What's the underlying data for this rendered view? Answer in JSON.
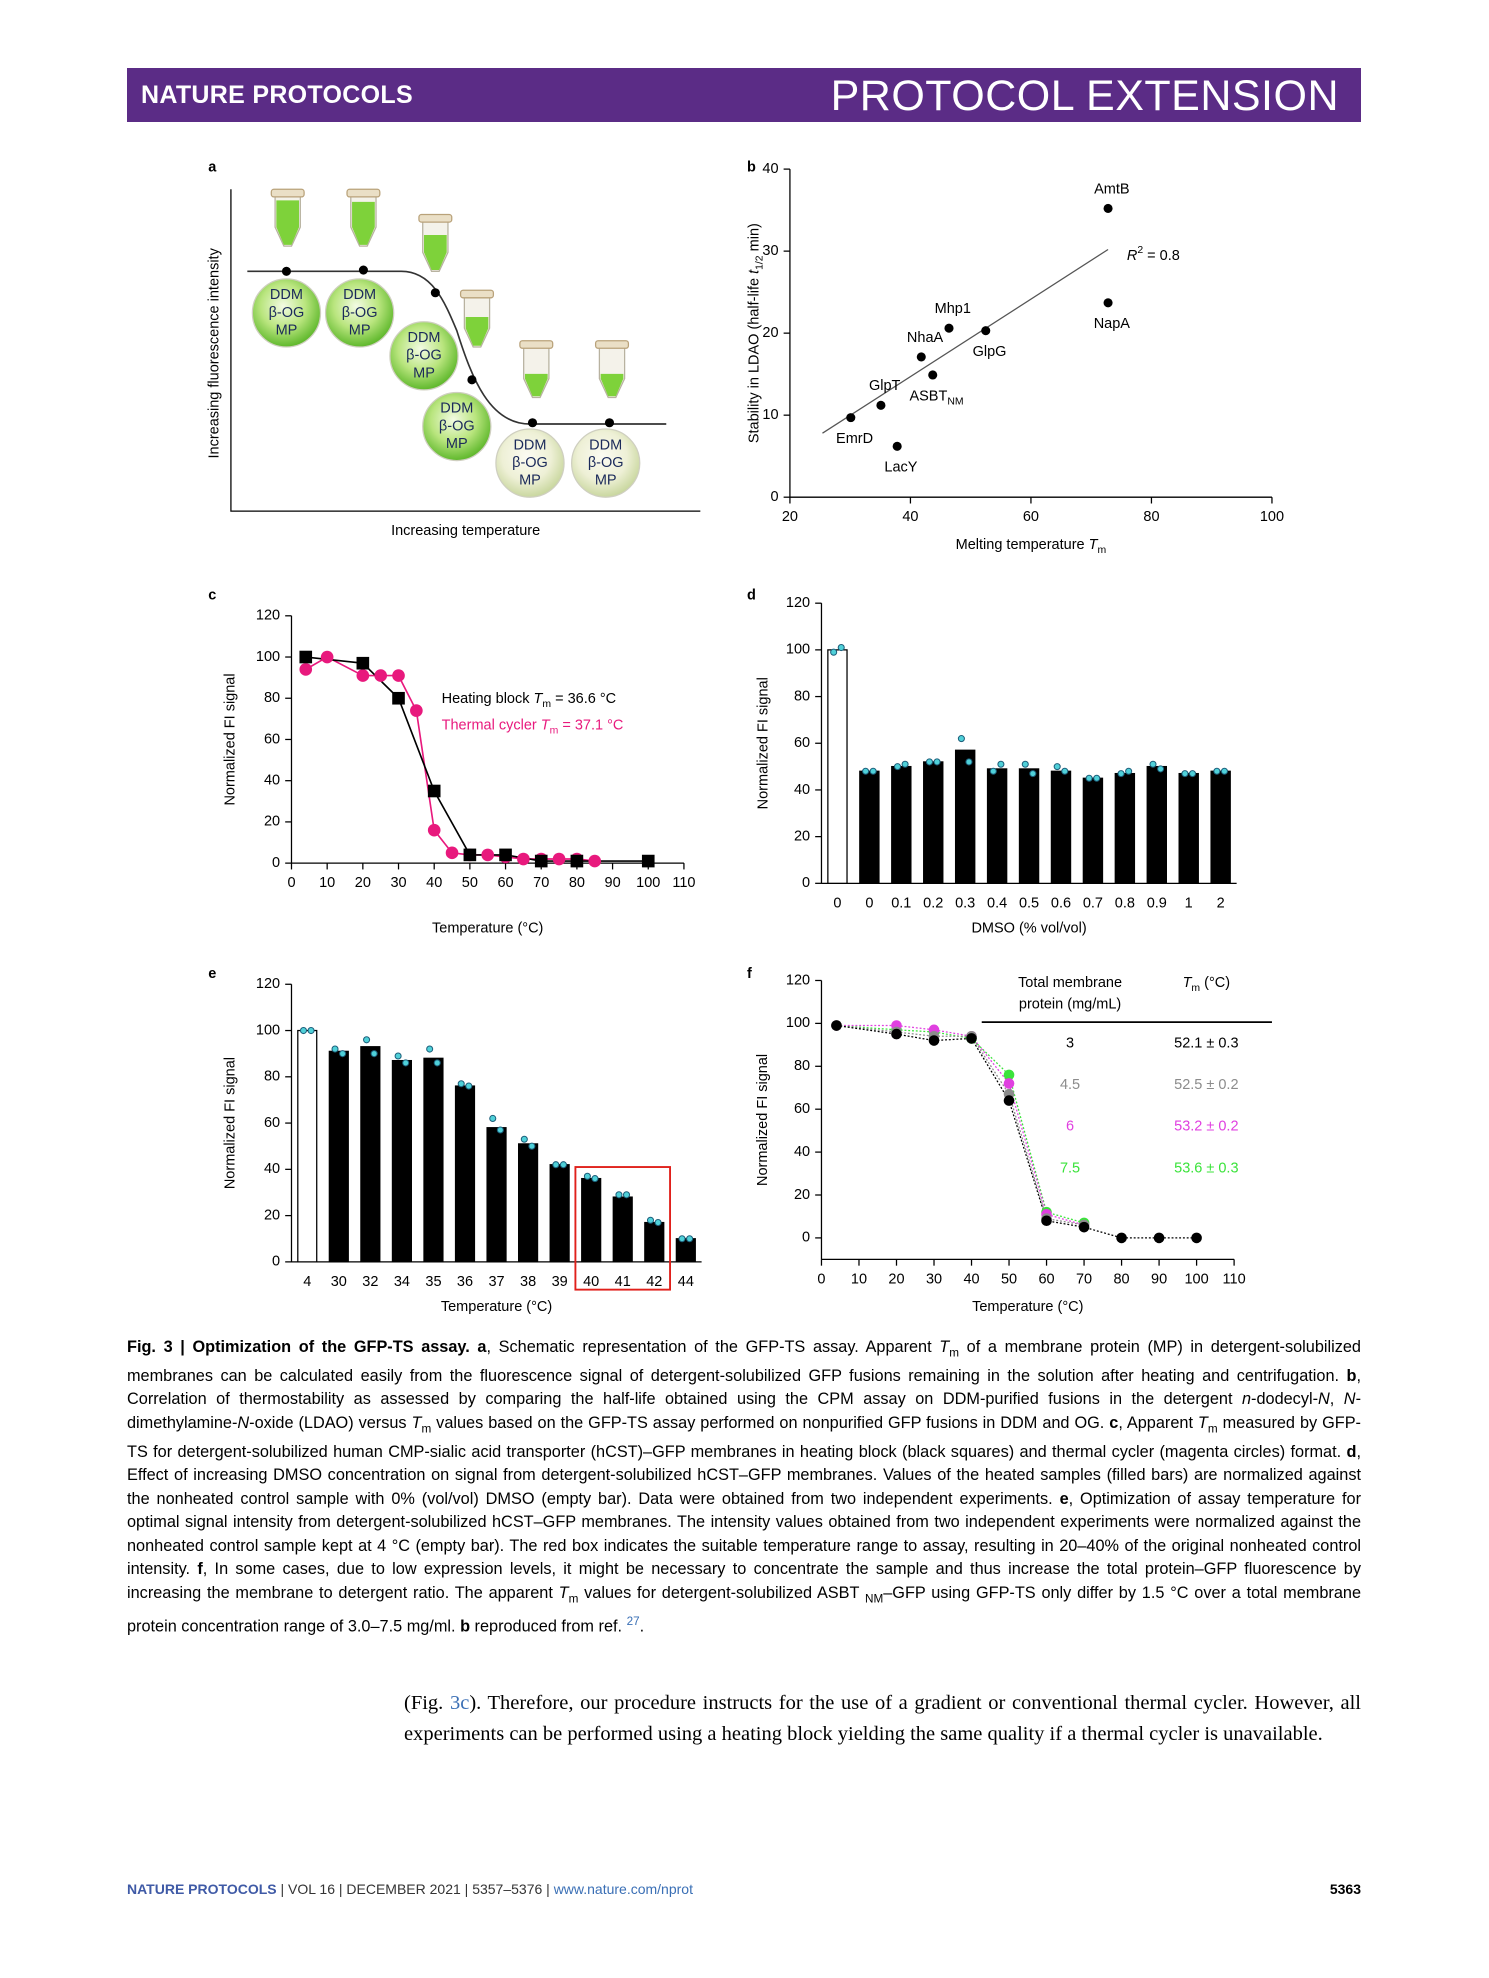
{
  "header": {
    "journal": "NATURE PROTOCOLS",
    "section": "PROTOCOL EXTENSION"
  },
  "schematic": {
    "label": "a",
    "ylabel": "Increasing fluorescence intensity",
    "xlabel": "Increasing temperature",
    "tubes": [
      [
        "DDM",
        "β-OG",
        "MP"
      ],
      [
        "DDM",
        "β-OG",
        "MP"
      ],
      [
        "DDM",
        "β-OG",
        "MP"
      ],
      [
        "DDM",
        "β-OG",
        "MP"
      ],
      [
        "DDM",
        "β-OG",
        "MP"
      ],
      [
        "DDM",
        "β-OG",
        "MP"
      ]
    ]
  },
  "chart_data": [
    {
      "type": "scatter",
      "label": "b",
      "xlabel": [
        {
          "text": "Melting temperature "
        },
        {
          "text": "T",
          "style": "i"
        },
        {
          "text": "m",
          "style": "sub"
        }
      ],
      "ylabel": [
        {
          "text": "Stability in LDAO (half-life "
        },
        {
          "text": "t",
          "style": "i"
        },
        {
          "text": "1/2",
          "style": "sub"
        },
        {
          "text": " min)"
        }
      ],
      "xlim": [
        20,
        100
      ],
      "xticks": [
        20,
        40,
        60,
        80,
        100
      ],
      "ylim": [
        0,
        40
      ],
      "yticks": [
        0,
        10,
        20,
        30,
        40
      ],
      "x": [
        72.8,
        72.8,
        46.4,
        52.5,
        41.8,
        43.7,
        35.1,
        30.1,
        37.8
      ],
      "values": [
        35.2,
        23.7,
        20.6,
        20.3,
        17.1,
        14.9,
        11.2,
        9.7,
        6.2
      ],
      "point_labels": [
        "AmtB",
        "NapA",
        "Mhp1",
        "GlpG",
        "NhaA",
        [
          {
            "text": "ASBT"
          },
          {
            "text": "NM",
            "style": "sub"
          }
        ],
        "GlpT",
        "EmrD",
        "LacY"
      ],
      "color": "#000000",
      "fit": {
        "x": [
          25.4,
          72.8
        ],
        "values": [
          7.8,
          30.2
        ]
      },
      "annotation": [
        {
          "text": "R",
          "style": "i"
        },
        {
          "text": "2",
          "style": "sup"
        },
        {
          "text": " = 0.8"
        }
      ]
    },
    {
      "type": "scatter",
      "label": "c",
      "xlabel": "Temperature (°C)",
      "ylabel": "Normalized FI signal",
      "xlim": [
        0,
        110
      ],
      "xticks": [
        0,
        10,
        20,
        30,
        40,
        50,
        60,
        70,
        80,
        90,
        100,
        110
      ],
      "ylim": [
        0,
        120
      ],
      "yticks": [
        0,
        20,
        40,
        60,
        80,
        100,
        120
      ],
      "line_style": "solid",
      "series": [
        {
          "name": [
            {
              "text": "Heating block "
            },
            {
              "text": "T",
              "style": "i"
            },
            {
              "text": "m",
              "style": "sub"
            },
            {
              "text": " = 36.6 °C"
            }
          ],
          "color": "#000000",
          "marker": "square",
          "x": [
            4,
            20,
            30,
            40,
            50,
            60,
            70,
            80,
            100
          ],
          "values": [
            100,
            97,
            80,
            35,
            4,
            4,
            1,
            1,
            1
          ]
        },
        {
          "name": [
            {
              "text": "Thermal cycler "
            },
            {
              "text": "T",
              "style": "i"
            },
            {
              "text": "m",
              "style": "sub"
            },
            {
              "text": " = 37.1 °C"
            }
          ],
          "color": "#e8197d",
          "marker": "circle",
          "x": [
            4,
            10,
            20,
            25,
            30,
            35,
            40,
            45,
            50,
            55,
            60,
            65,
            70,
            75,
            80,
            85
          ],
          "values": [
            94,
            100,
            91,
            91,
            91,
            74,
            16,
            5,
            4,
            4,
            3,
            2,
            2,
            2,
            2,
            1
          ]
        }
      ]
    },
    {
      "type": "bar",
      "label": "d",
      "xlabel": "DMSO (% vol/vol)",
      "ylabel": "Normalized FI signal",
      "ylim": [
        0,
        120
      ],
      "yticks": [
        0,
        20,
        40,
        60,
        80,
        100,
        120
      ],
      "categories": [
        "0",
        "0",
        "0.1",
        "0.2",
        "0.3",
        "0.4",
        "0.5",
        "0.6",
        "0.7",
        "0.8",
        "0.9",
        "1",
        "2"
      ],
      "values": [
        100,
        48,
        50,
        52,
        57,
        49,
        49,
        48,
        45,
        47,
        50,
        47,
        48
      ],
      "replicates": [
        [
          99,
          101
        ],
        [
          48,
          48
        ],
        [
          50,
          51
        ],
        [
          52,
          52
        ],
        [
          62,
          52
        ],
        [
          48,
          51
        ],
        [
          51,
          47
        ],
        [
          50,
          48
        ],
        [
          45,
          45
        ],
        [
          47,
          48
        ],
        [
          51,
          49
        ],
        [
          47,
          47
        ],
        [
          48,
          48
        ]
      ],
      "bar_colors": [
        "#ffffff",
        "#000000",
        "#000000",
        "#000000",
        "#000000",
        "#000000",
        "#000000",
        "#000000",
        "#000000",
        "#000000",
        "#000000",
        "#000000",
        "#000000"
      ],
      "replicate_color": "#4fd0d8"
    },
    {
      "type": "bar",
      "label": "e",
      "xlabel": "Temperature (°C)",
      "ylabel": "Normalized FI signal",
      "ylim": [
        0,
        120
      ],
      "yticks": [
        0,
        20,
        40,
        60,
        80,
        100,
        120
      ],
      "categories": [
        "4",
        "30",
        "32",
        "34",
        "35",
        "36",
        "37",
        "38",
        "39",
        "40",
        "41",
        "42",
        "44"
      ],
      "values": [
        100,
        91,
        93,
        87,
        88,
        76,
        58,
        51,
        42,
        36,
        28,
        17,
        10
      ],
      "replicates": [
        [
          100,
          100
        ],
        [
          92,
          90
        ],
        [
          96,
          90
        ],
        [
          89,
          86
        ],
        [
          92,
          86
        ],
        [
          77,
          76
        ],
        [
          62,
          57
        ],
        [
          53,
          50
        ],
        [
          42,
          42
        ],
        [
          37,
          36
        ],
        [
          29,
          29
        ],
        [
          18,
          17
        ],
        [
          10,
          10
        ]
      ],
      "bar_colors": [
        "#ffffff",
        "#000000",
        "#000000",
        "#000000",
        "#000000",
        "#000000",
        "#000000",
        "#000000",
        "#000000",
        "#000000",
        "#000000",
        "#000000",
        "#000000"
      ],
      "replicate_color": "#4fd0d8",
      "highlight": {
        "categories": [
          "40",
          "42"
        ],
        "top": 41,
        "color": "#e0201b"
      }
    },
    {
      "type": "scatter",
      "label": "f",
      "xlabel": "Temperature (°C)",
      "ylabel": "Normalized FI signal",
      "xlim": [
        0,
        110
      ],
      "xticks": [
        0,
        10,
        20,
        30,
        40,
        50,
        60,
        70,
        80,
        90,
        100,
        110
      ],
      "ylim": [
        -10,
        120
      ],
      "yticks": [
        0,
        20,
        40,
        60,
        80,
        100,
        120
      ],
      "line_style": "dotted",
      "table_headers": {
        "name": [
          "Total membrane",
          "protein (mg/mL)"
        ],
        "tm": [
          {
            "text": "T",
            "style": "i"
          },
          {
            "text": "m",
            "style": "sub"
          },
          {
            "text": " (°C)"
          }
        ]
      },
      "series": [
        {
          "name": "3",
          "tm": "52.1 ± 0.3",
          "color": "#000000",
          "marker": "circle",
          "x": [
            4,
            20,
            30,
            40,
            50,
            60,
            70,
            80,
            90,
            100
          ],
          "values": [
            99,
            95,
            92,
            93,
            64,
            8,
            5,
            0,
            0,
            0
          ]
        },
        {
          "name": "4.5",
          "tm": "52.5 ± 0.2",
          "color": "#8c8c8c",
          "marker": "circle",
          "x": [
            4,
            20,
            30,
            40,
            50,
            60,
            70
          ],
          "values": [
            99,
            96,
            94,
            94,
            67,
            9,
            6
          ]
        },
        {
          "name": "6",
          "tm": "53.2 ± 0.2",
          "color": "#e040e0",
          "marker": "circle",
          "x": [
            4,
            20,
            30,
            40,
            50,
            60,
            70
          ],
          "values": [
            99,
            99,
            97,
            94,
            72,
            11,
            6
          ]
        },
        {
          "name": "7.5",
          "tm": "53.6 ± 0.3",
          "color": "#3be33b",
          "marker": "circle",
          "x": [
            4,
            20,
            30,
            40,
            50,
            60,
            70
          ],
          "values": [
            99,
            97,
            96,
            93,
            76,
            12,
            7
          ]
        }
      ]
    }
  ],
  "caption": [
    {
      "text": "Fig. 3 | Optimization of the GFP-TS assay. a",
      "style": "b"
    },
    {
      "text": ", Schematic representation of the GFP-TS assay. Apparent "
    },
    {
      "text": "T",
      "style": "i"
    },
    {
      "text": "m",
      "style": "sub"
    },
    {
      "text": " of a membrane protein (MP) in detergent-solubilized membranes can be calculated easily from the fluorescence signal of detergent-solubilized GFP fusions remaining in the solution after heating and centrifugation. "
    },
    {
      "text": "b",
      "style": "b"
    },
    {
      "text": ", Correlation of thermostability as assessed by comparing the half-life obtained using the CPM assay on DDM-purified fusions in the detergent "
    },
    {
      "text": "n",
      "style": "i"
    },
    {
      "text": "-dodecyl-"
    },
    {
      "text": "N",
      "style": "i"
    },
    {
      "text": ", "
    },
    {
      "text": "N",
      "style": "i"
    },
    {
      "text": "-dimethylamine-"
    },
    {
      "text": "N",
      "style": "i"
    },
    {
      "text": "-oxide (LDAO) versus "
    },
    {
      "text": "T",
      "style": "i"
    },
    {
      "text": "m",
      "style": "sub"
    },
    {
      "text": " values based on the GFP-TS assay performed on nonpurified GFP fusions in DDM and OG. "
    },
    {
      "text": "c",
      "style": "b"
    },
    {
      "text": ", Apparent "
    },
    {
      "text": "T",
      "style": "i"
    },
    {
      "text": "m",
      "style": "sub"
    },
    {
      "text": " measured by GFP-TS for detergent-solubilized human CMP-sialic acid transporter (hCST)–GFP membranes in heating block (black squares) and thermal cycler (magenta circles) format. "
    },
    {
      "text": "d",
      "style": "b"
    },
    {
      "text": ", Effect of increasing DMSO concentration on signal from detergent-solubilized hCST–GFP membranes. Values of the heated samples (filled bars) are normalized against the nonheated control sample with 0% (vol/vol) DMSO (empty bar). Data were obtained from two independent experiments. "
    },
    {
      "text": "e",
      "style": "b"
    },
    {
      "text": ", Optimization of assay temperature for optimal signal intensity from detergent-solubilized hCST–GFP membranes. The intensity values obtained from two independent experiments were normalized against the nonheated control sample kept at 4 °C (empty bar). The red box indicates the suitable temperature range to assay, resulting in 20–40% of the original nonheated control intensity. "
    },
    {
      "text": "f",
      "style": "b"
    },
    {
      "text": ", In some cases, due to low expression levels, it might be necessary to concentrate the sample and thus increase the total protein–GFP fluorescence by increasing the membrane to detergent ratio. The apparent "
    },
    {
      "text": "T",
      "style": "i"
    },
    {
      "text": "m",
      "style": "sub"
    },
    {
      "text": " values for detergent-solubilized ASBT "
    },
    {
      "text": "NM",
      "style": "sub"
    },
    {
      "text": "–GFP using GFP-TS only differ by 1.5 °C over a total membrane protein concentration range of 3.0–7.5 mg/ml. "
    },
    {
      "text": "b",
      "style": "b"
    },
    {
      "text": " reproduced from ref. "
    },
    {
      "text": "27",
      "style": "sup-link"
    },
    {
      "text": "."
    }
  ],
  "body": [
    {
      "text": "(Fig. "
    },
    {
      "text": "3c",
      "style": "link"
    },
    {
      "text": "). Therefore, our procedure instructs for the use of a gradient or conventional thermal cycler. However, all experiments can be performed using a heating block yielding the same quality if a thermal cycler is unavailable."
    }
  ],
  "footer": {
    "journal": "NATURE PROTOCOLS",
    "info": "| VOL 16 | DECEMBER 2021 | 5357–5376 |",
    "url": "www.nature.com/nprot",
    "page": "5363"
  }
}
